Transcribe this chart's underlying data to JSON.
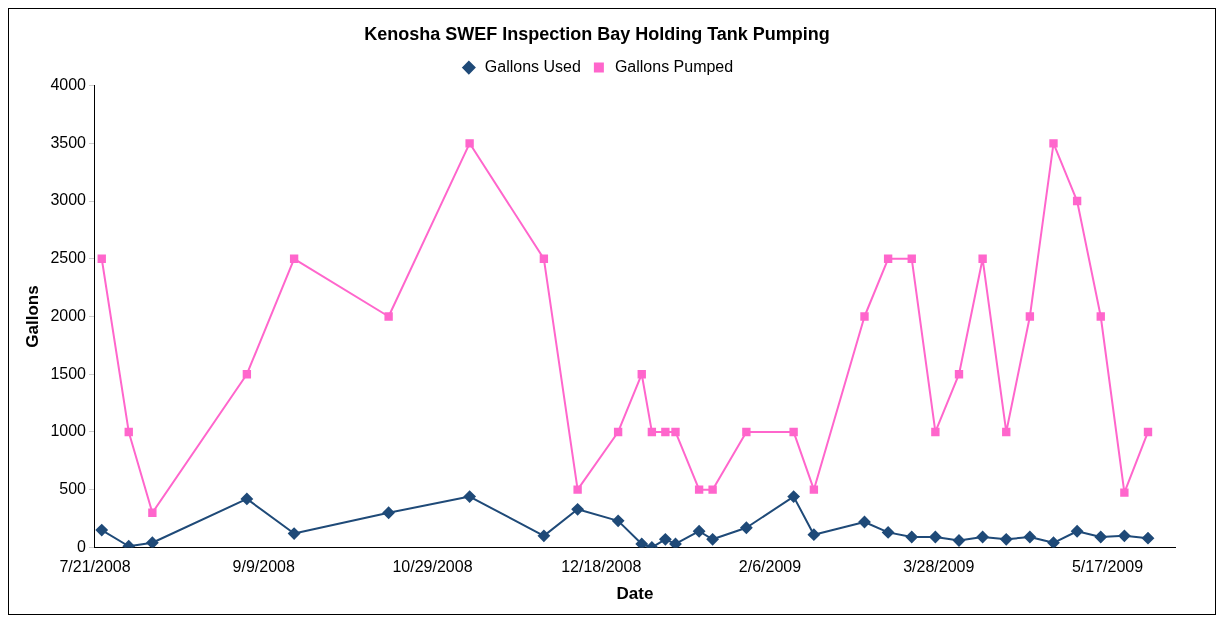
{
  "chart_data": {
    "type": "line",
    "title": "Kenosha SWEF Inspection Bay Holding Tank Pumping",
    "xlabel": "Date",
    "ylabel": "Gallons",
    "legend": "top",
    "grid": false,
    "line_style": "solid",
    "x": [
      "2008-07-23",
      "2008-07-31",
      "2008-08-07",
      "2008-09-04",
      "2008-09-18",
      "2008-10-16",
      "2008-11-09",
      "2008-12-01",
      "2008-12-11",
      "2008-12-23",
      "2008-12-30",
      "2009-01-02",
      "2009-01-06",
      "2009-01-09",
      "2009-01-16",
      "2009-01-20",
      "2009-01-30",
      "2009-02-13",
      "2009-02-19",
      "2009-03-06",
      "2009-03-13",
      "2009-03-20",
      "2009-03-27",
      "2009-04-03",
      "2009-04-10",
      "2009-04-17",
      "2009-04-24",
      "2009-05-01",
      "2009-05-08",
      "2009-05-15",
      "2009-05-22",
      "2009-05-29"
    ],
    "series": [
      {
        "name": "Gallons Used",
        "color": "#1f4a78",
        "marker": "diamond",
        "values": [
          150,
          10,
          40,
          420,
          120,
          300,
          440,
          100,
          330,
          230,
          30,
          0,
          70,
          30,
          140,
          70,
          170,
          440,
          110,
          220,
          130,
          90,
          90,
          60,
          90,
          70,
          90,
          40,
          140,
          90,
          100,
          80
        ]
      },
      {
        "name": "Gallons Pumped",
        "color": "#ff66cc",
        "marker": "square",
        "values": [
          2500,
          1000,
          300,
          1500,
          2500,
          2000,
          3500,
          2500,
          500,
          1000,
          1500,
          1000,
          1000,
          1000,
          500,
          500,
          1000,
          1000,
          500,
          2000,
          2500,
          2500,
          1000,
          1500,
          2500,
          1000,
          2000,
          3500,
          3000,
          2000,
          475,
          1000
        ]
      }
    ],
    "xlim": [
      "2008-07-21",
      "2009-06-06"
    ],
    "xticks": [
      {
        "value": "2008-07-21",
        "label": "7/21/2008"
      },
      {
        "value": "2008-09-09",
        "label": "9/9/2008"
      },
      {
        "value": "2008-10-29",
        "label": "10/29/2008"
      },
      {
        "value": "2008-12-18",
        "label": "12/18/2008"
      },
      {
        "value": "2009-02-06",
        "label": "2/6/2009"
      },
      {
        "value": "2009-03-28",
        "label": "3/28/2009"
      },
      {
        "value": "2009-05-17",
        "label": "5/17/2009"
      }
    ],
    "ylim": [
      0,
      4000
    ],
    "yticks": [
      0,
      500,
      1000,
      1500,
      2000,
      2500,
      3000,
      3500,
      4000
    ]
  }
}
